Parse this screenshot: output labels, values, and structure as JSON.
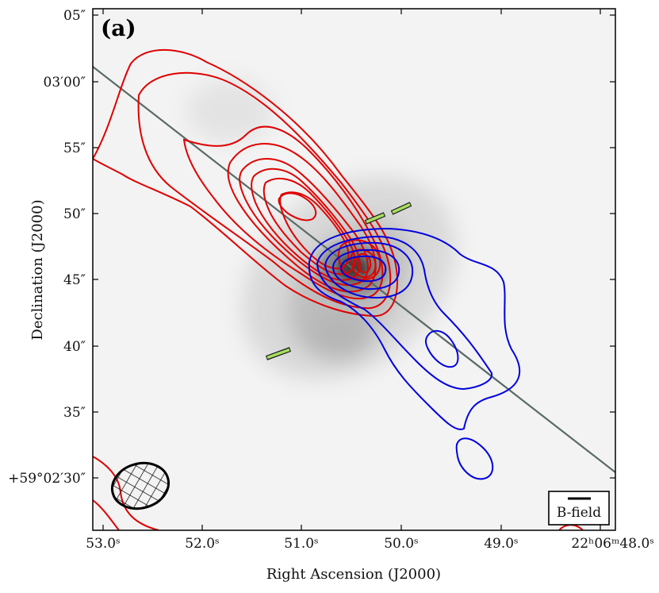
{
  "chart_data": {
    "type": "contour",
    "panel_label": "(a)",
    "xlabel": "Right Ascension (J2000)",
    "ylabel": "Declination (J2000)",
    "x_ticks": [
      "53.0ˢ",
      "52.0ˢ",
      "51.0ˢ",
      "50.0ˢ",
      "49.0ˢ",
      "22ʰ06ᵐ48.0ˢ"
    ],
    "y_ticks": [
      "05″",
      "03′00″",
      "55″",
      "50″",
      "45″",
      "40″",
      "35″",
      "+59°02′30″"
    ],
    "xlim_ra_seconds": [
      53.15,
      47.9
    ],
    "ylim_dec_arcsec": [
      25.6,
      65.5
    ],
    "background": "grayscale continuum, peak near RA 50.4s Dec 45″",
    "outflow_axis": {
      "from": [
        53.15,
        61.8
      ],
      "to": [
        47.9,
        30.0
      ]
    },
    "red_contours_center": [
      50.3,
      45.8
    ],
    "blue_contours_center": [
      50.4,
      46.0
    ],
    "bfield_segments": [
      {
        "ra": 50.35,
        "dec": 49.7,
        "pa_deg": 62
      },
      {
        "ra": 49.98,
        "dec": 50.5,
        "pa_deg": 58
      },
      {
        "ra": 51.2,
        "dec": 39.3,
        "pa_deg": 65
      }
    ],
    "beam": "hatched ellipse, lower-left",
    "legend_label": "B-field",
    "series": [
      {
        "color": "#e00000"
      },
      {
        "color": "#0000e0"
      },
      {
        "color": "#a8e05f"
      }
    ]
  },
  "colors": {
    "red": "#e00000",
    "blue": "#0000e0",
    "bfield": "#a8e05f",
    "axis_line": "#5a6a66"
  }
}
